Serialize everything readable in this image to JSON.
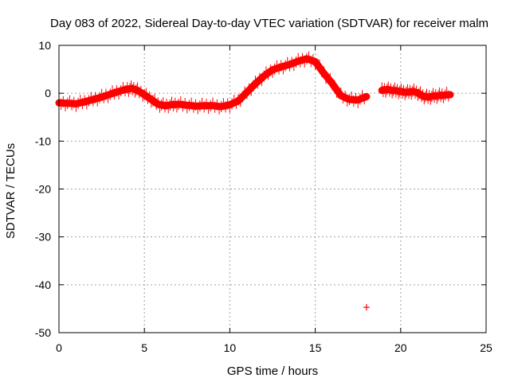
{
  "chart_data": {
    "type": "scatter",
    "title": "Day 083 of 2022, Sidereal Day-to-day VTEC variation (SDTVAR) for receiver malm",
    "xlabel": "GPS time / hours",
    "ylabel": "SDTVAR / TECUs",
    "xlim": [
      0,
      25
    ],
    "ylim": [
      -50,
      10
    ],
    "xticks": [
      0,
      5,
      10,
      15,
      20,
      25
    ],
    "xtick_labels": [
      "0",
      "5",
      "10",
      "15",
      "20",
      "25"
    ],
    "yticks": [
      10,
      0,
      -10,
      -20,
      -30,
      -40,
      -50
    ],
    "ytick_labels": [
      "10",
      "0",
      "-10",
      "-20",
      "-30",
      "-40",
      "-50"
    ],
    "grid": true,
    "marker_color": "#ff0000",
    "series": [
      {
        "name": "SDTVAR",
        "segments": [
          {
            "x": [
              0.0,
              0.5,
              1.0,
              1.5,
              2.0,
              2.5,
              3.0,
              3.5,
              4.0,
              4.3,
              4.6,
              5.0,
              5.4,
              5.8,
              6.2,
              6.6,
              7.0,
              7.5,
              8.0,
              8.5,
              9.0,
              9.5,
              10.0,
              10.5,
              11.0,
              11.5,
              12.0,
              12.5,
              13.0,
              13.5,
              14.0,
              14.5,
              15.0,
              15.5,
              16.0,
              16.5,
              17.0,
              17.5,
              18.0
            ],
            "y": [
              -2.0,
              -2.1,
              -2.2,
              -1.8,
              -1.3,
              -0.8,
              -0.2,
              0.4,
              0.9,
              1.0,
              0.6,
              -0.3,
              -1.3,
              -2.3,
              -2.6,
              -2.4,
              -2.3,
              -2.5,
              -2.7,
              -2.6,
              -2.6,
              -2.8,
              -2.4,
              -1.6,
              0.2,
              2.0,
              3.6,
              4.9,
              5.5,
              6.0,
              6.7,
              7.2,
              6.6,
              4.2,
              2.0,
              -0.5,
              -1.3,
              -1.4,
              -0.7
            ]
          },
          {
            "x": [
              18.9,
              19.2,
              19.5,
              19.8,
              20.1,
              20.4,
              20.7,
              21.0,
              21.3,
              21.6,
              21.9,
              22.2,
              22.5,
              22.9
            ],
            "y": [
              0.6,
              0.8,
              0.6,
              0.5,
              0.3,
              0.2,
              0.4,
              0.1,
              -0.6,
              -0.8,
              -0.6,
              -0.5,
              -0.4,
              -0.3
            ]
          },
          {
            "x": [
              18.0
            ],
            "y": [
              -44.7
            ]
          }
        ]
      }
    ]
  }
}
